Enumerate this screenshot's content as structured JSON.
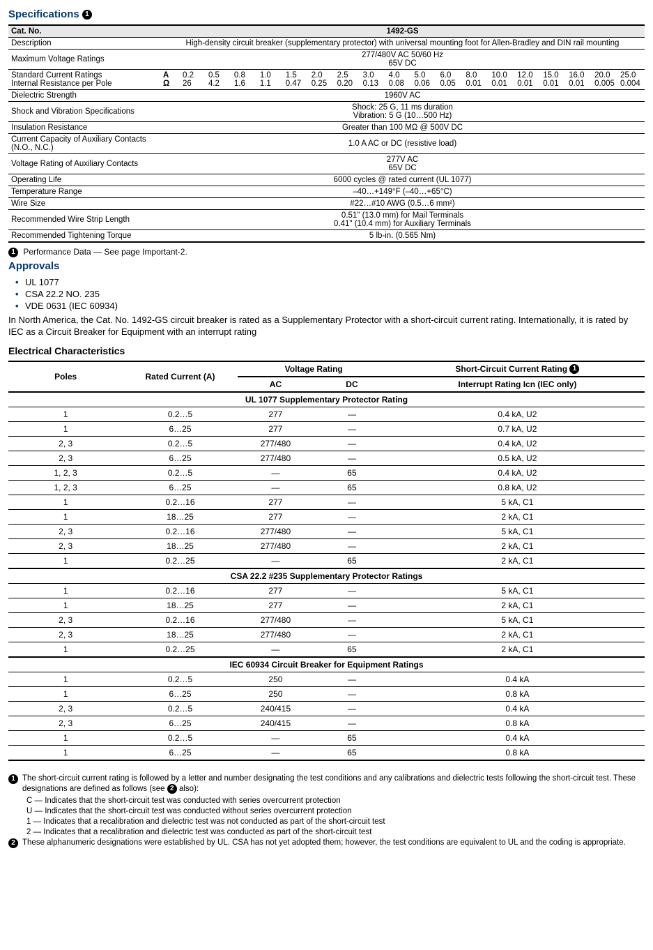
{
  "titles": {
    "specifications": "Specifications",
    "approvals": "Approvals",
    "elec": "Electrical Characteristics"
  },
  "spec_header": {
    "cat_no_label": "Cat. No.",
    "cat_no_value": "1492-GS"
  },
  "spec_rows": {
    "description": {
      "label": "Description",
      "value": "High-density circuit breaker (supplementary protector) with universal mounting foot for Allen-Bradley and DIN rail mounting"
    },
    "max_voltage": {
      "label": "Maximum Voltage Ratings",
      "value1": "277/480V AC 50/60 Hz",
      "value2": "65V DC"
    },
    "current_ratings_label1": "Standard Current Ratings",
    "current_ratings_label2": "Internal Resistance per Pole",
    "current_unit1": "A",
    "current_unit2": "Ω",
    "current_row1": [
      "0.2",
      "0.5",
      "0.8",
      "1.0",
      "1.5",
      "2.0",
      "2.5",
      "3.0",
      "4.0",
      "5.0",
      "6.0",
      "8.0",
      "10.0",
      "12.0",
      "15.0",
      "16.0",
      "20.0",
      "25.0"
    ],
    "current_row2": [
      "26",
      "4.2",
      "1.6",
      "1.1",
      "0.47",
      "0.25",
      "0.20",
      "0.13",
      "0.08",
      "0.06",
      "0.05",
      "0.01",
      "0.01",
      "0.01",
      "0.01",
      "0.01",
      "0.005",
      "0.004"
    ],
    "dielectric": {
      "label": "Dielectric Strength",
      "value": "1960V AC"
    },
    "shock": {
      "label": "Shock and Vibration Specifications",
      "value1": "Shock: 25 G, 11 ms duration",
      "value2": "Vibration: 5 G (10…500 Hz)"
    },
    "insulation": {
      "label": "Insulation Resistance",
      "value": "Greater than 100 MΩ @ 500V DC"
    },
    "aux_current": {
      "label": "Current Capacity of Auxiliary Contacts (N.O., N.C.)",
      "value": "1.0 A AC or DC (resistive load)"
    },
    "aux_voltage": {
      "label": "Voltage Rating of Auxiliary Contacts",
      "value1": "277V AC",
      "value2": "65V DC"
    },
    "op_life": {
      "label": "Operating Life",
      "value": "6000 cycles @ rated current (UL 1077)"
    },
    "temp": {
      "label": "Temperature Range",
      "value": "–40…+149°F (–40…+65°C)"
    },
    "wire": {
      "label": "Wire Size",
      "value": "#22…#10 AWG (0.5…6 mm²)"
    },
    "strip": {
      "label": "Recommended Wire Strip Length",
      "value1": "0.51\" (13.0 mm) for Mail Terminals",
      "value2": "0.41\" (10.4 mm) for Auxiliary Terminals"
    },
    "torque": {
      "label": "Recommended Tightening Torque",
      "value": "5 lb-in. (0.565 Nm)"
    }
  },
  "footnote1": "Performance Data — See page Important-2.",
  "approvals": [
    "UL 1077",
    "CSA 22.2 NO. 235",
    "VDE 0631 (IEC 60934)"
  ],
  "approvals_text": "In North America, the Cat. No. 1492-GS circuit breaker is rated as a Supplementary Protector with a short-circuit current rating. Internationally, it is rated by IEC as a Circuit Breaker for Equipment with an interrupt rating",
  "elec_headers": {
    "poles": "Poles",
    "rated": "Rated Current (A)",
    "voltage": "Voltage Rating",
    "ac": "AC",
    "dc": "DC",
    "short1": "Short-Circuit Current Rating",
    "short2": "Interrupt Rating Icn (IEC only)"
  },
  "elec_sections": [
    {
      "title": "UL 1077 Supplementary Protector Rating",
      "rows": [
        [
          "1",
          "0.2…5",
          "277",
          "—",
          "0.4 kA, U2"
        ],
        [
          "1",
          "6…25",
          "277",
          "—",
          "0.7 kA, U2"
        ],
        [
          "2, 3",
          "0.2…5",
          "277/480",
          "—",
          "0.4 kA, U2"
        ],
        [
          "2, 3",
          "6…25",
          "277/480",
          "—",
          "0.5 kA, U2"
        ],
        [
          "1, 2, 3",
          "0.2…5",
          "—",
          "65",
          "0.4 kA, U2"
        ],
        [
          "1, 2, 3",
          "6…25",
          "—",
          "65",
          "0.8 kA, U2"
        ],
        [
          "1",
          "0.2…16",
          "277",
          "—",
          "5 kA, C1"
        ],
        [
          "1",
          "18…25",
          "277",
          "—",
          "2 kA, C1"
        ],
        [
          "2, 3",
          "0.2…16",
          "277/480",
          "—",
          "5 kA, C1"
        ],
        [
          "2, 3",
          "18…25",
          "277/480",
          "—",
          "2 kA, C1"
        ],
        [
          "1",
          "0.2…25",
          "—",
          "65",
          "2 kA, C1"
        ]
      ]
    },
    {
      "title": "CSA 22.2 #235 Supplementary Protector Ratings",
      "rows": [
        [
          "1",
          "0.2…16",
          "277",
          "—",
          "5 kA, C1"
        ],
        [
          "1",
          "18…25",
          "277",
          "—",
          "2 kA, C1"
        ],
        [
          "2, 3",
          "0.2…16",
          "277/480",
          "—",
          "5 kA, C1"
        ],
        [
          "2, 3",
          "18…25",
          "277/480",
          "—",
          "2 kA, C1"
        ],
        [
          "1",
          "0.2…25",
          "—",
          "65",
          "2 kA, C1"
        ]
      ]
    },
    {
      "title": "IEC 60934 Circuit Breaker for Equipment Ratings",
      "rows": [
        [
          "1",
          "0.2…5",
          "250",
          "—",
          "0.4 kA"
        ],
        [
          "1",
          "6…25",
          "250",
          "—",
          "0.8 kA"
        ],
        [
          "2, 3",
          "0.2…5",
          "240/415",
          "—",
          "0.4 kA"
        ],
        [
          "2, 3",
          "6…25",
          "240/415",
          "—",
          "0.8 kA"
        ],
        [
          "1",
          "0.2…5",
          "—",
          "65",
          "0.4 kA"
        ],
        [
          "1",
          "6…25",
          "—",
          "65",
          "0.8 kA"
        ]
      ]
    }
  ],
  "bottom_notes": {
    "n1_main": "The short-circuit current rating is followed by a letter and number designating the test conditions and any calibrations and dielectric tests following the short-circuit test. These designations are defined as follows (see",
    "n1_tail": " also):",
    "n1_lines": [
      "C — Indicates that the short-circuit test was conducted with series overcurrent protection",
      "U — Indicates that the short-circuit test was conducted without series overcurrent protection",
      "1 — Indicates that a recalibration and dielectric test was not conducted as part of the short-circuit test",
      "2 — Indicates that a recalibration and dielectric test was conducted as part of the short-circuit test"
    ],
    "n2": "These alphanumeric designations were established by UL. CSA has not yet adopted them; however, the test conditions are equivalent to UL and the coding is appropriate."
  }
}
